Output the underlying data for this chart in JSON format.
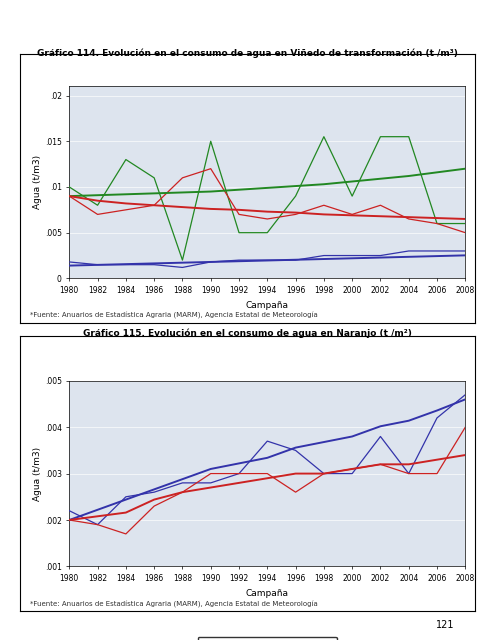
{
  "title1": "Gráfico 114. Evolución en el consumo de agua en Viñedo de transformación (t /m³)",
  "title2": "Gráfico 115. Evolución en el consumo de agua en Naranjo (t /m²)",
  "footnote": "*Fuente: Anuarios de Estadística Agraria (MARM), Agencia Estatal de Meteorología",
  "xlabel": "Campaña",
  "ylabel": "Agua (t/m3)",
  "years": [
    1980,
    1982,
    1984,
    1986,
    1988,
    1990,
    1992,
    1994,
    1996,
    1998,
    2000,
    2002,
    2004,
    2006,
    2008
  ],
  "chart1": {
    "riego": [
      0.0018,
      0.0015,
      0.0015,
      0.0015,
      0.0012,
      0.0018,
      0.002,
      0.002,
      0.002,
      0.0025,
      0.0025,
      0.0025,
      0.003,
      0.003,
      0.003
    ],
    "riego_trend": [
      0.0014,
      0.00148,
      0.00156,
      0.00164,
      0.00172,
      0.0018,
      0.00188,
      0.00196,
      0.00204,
      0.00212,
      0.0022,
      0.00228,
      0.00236,
      0.00244,
      0.00252
    ],
    "precip": [
      0.01,
      0.008,
      0.013,
      0.011,
      0.002,
      0.015,
      0.005,
      0.005,
      0.009,
      0.0155,
      0.009,
      0.0155,
      0.0155,
      0.006,
      0.006
    ],
    "precip_trend": [
      0.009,
      0.0091,
      0.0092,
      0.0093,
      0.0094,
      0.0095,
      0.0097,
      0.0099,
      0.0101,
      0.0103,
      0.0106,
      0.0109,
      0.0112,
      0.0116,
      0.012
    ],
    "total": [
      0.009,
      0.007,
      0.0075,
      0.008,
      0.011,
      0.012,
      0.007,
      0.0065,
      0.007,
      0.008,
      0.007,
      0.008,
      0.0065,
      0.006,
      0.005
    ],
    "total_trend": [
      0.009,
      0.0085,
      0.0082,
      0.008,
      0.0078,
      0.0076,
      0.0075,
      0.0073,
      0.0072,
      0.007,
      0.0069,
      0.0068,
      0.0067,
      0.0066,
      0.0065
    ],
    "ylim": [
      0,
      0.021
    ],
    "yticks": [
      0,
      0.005,
      0.01,
      0.015,
      0.02
    ],
    "yticklabels": [
      "0",
      ".005",
      ".01",
      ".015",
      ".02"
    ]
  },
  "chart2": {
    "riego": [
      0.0022,
      0.0019,
      0.0025,
      0.0026,
      0.0028,
      0.0028,
      0.003,
      0.0037,
      0.0035,
      0.003,
      0.003,
      0.0038,
      0.003,
      0.0042,
      0.0047
    ],
    "riego_trend": [
      0.002,
      0.00222,
      0.00244,
      0.00266,
      0.00288,
      0.0031,
      0.00322,
      0.00334,
      0.00356,
      0.00368,
      0.0038,
      0.00402,
      0.00414,
      0.00436,
      0.0046
    ],
    "total": [
      0.002,
      0.0019,
      0.0017,
      0.0023,
      0.0026,
      0.003,
      0.003,
      0.003,
      0.0026,
      0.003,
      0.0031,
      0.0032,
      0.003,
      0.003,
      0.004
    ],
    "total_trend": [
      0.002,
      0.00208,
      0.00216,
      0.00244,
      0.0026,
      0.0027,
      0.0028,
      0.0029,
      0.003,
      0.003,
      0.0031,
      0.0032,
      0.0032,
      0.0033,
      0.0034
    ],
    "ylim": [
      0.001,
      0.005
    ],
    "yticks": [
      0.001,
      0.002,
      0.003,
      0.004,
      0.005
    ],
    "yticklabels": [
      ".001",
      ".002",
      ".003",
      ".004",
      ".005"
    ]
  },
  "color_riego": "#3333aa",
  "color_precip": "#228822",
  "color_total": "#cc2222",
  "bg_color": "#dde4ee",
  "box_color": "#ffffff",
  "page_bg": "#ffffff"
}
